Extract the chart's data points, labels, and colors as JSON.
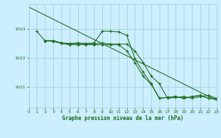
{
  "bg_color": "#cceeff",
  "grid_color": "#99cccc",
  "line_color": "#1a6b1a",
  "xlabel": "Graphe pression niveau de la mer (hPa)",
  "xlim": [
    0,
    23
  ],
  "ylim": [
    1020.3,
    1023.85
  ],
  "yticks": [
    1021,
    1022,
    1023
  ],
  "xticks": [
    0,
    1,
    2,
    3,
    4,
    5,
    6,
    7,
    8,
    9,
    10,
    11,
    12,
    13,
    14,
    15,
    16,
    17,
    18,
    19,
    20,
    21,
    22,
    23
  ],
  "line1_x": [
    0,
    23
  ],
  "line1_y": [
    1023.75,
    1020.55
  ],
  "line2_x": [
    1,
    2,
    3,
    4,
    5,
    6,
    7,
    8,
    9,
    10,
    11,
    12,
    13,
    14,
    15,
    16,
    17,
    18,
    19,
    20,
    21,
    22,
    23
  ],
  "line2_y": [
    1022.92,
    1022.58,
    1022.58,
    1022.52,
    1022.5,
    1022.52,
    1022.5,
    1022.52,
    1022.92,
    1022.92,
    1022.9,
    1022.78,
    1021.98,
    1021.52,
    1021.12,
    1020.62,
    1020.65,
    1020.68,
    1020.62,
    1020.68,
    1020.72,
    1020.62,
    1020.6
  ],
  "line3_x": [
    2,
    3,
    4,
    5,
    6,
    7,
    8,
    9,
    10,
    11,
    12,
    13,
    14,
    15,
    16,
    17,
    18,
    19,
    20,
    21,
    22,
    23
  ],
  "line3_y": [
    1022.6,
    1022.6,
    1022.52,
    1022.48,
    1022.48,
    1022.48,
    1022.48,
    1022.52,
    1022.48,
    1022.48,
    1022.48,
    1022.25,
    1021.85,
    1021.38,
    1021.12,
    1020.62,
    1020.65,
    1020.68,
    1020.62,
    1020.68,
    1020.72,
    1020.62
  ],
  "line4_x": [
    3,
    4,
    5,
    6,
    7,
    8,
    9,
    10,
    11,
    12,
    13,
    14,
    15,
    16,
    17,
    18,
    19,
    20,
    21,
    22,
    23
  ],
  "line4_y": [
    1022.58,
    1022.5,
    1022.46,
    1022.46,
    1022.46,
    1022.46,
    1022.46,
    1022.46,
    1022.46,
    1022.25,
    1021.85,
    1021.38,
    1021.1,
    1020.62,
    1020.65,
    1020.68,
    1020.62,
    1020.68,
    1020.72,
    1020.62,
    1020.6
  ]
}
